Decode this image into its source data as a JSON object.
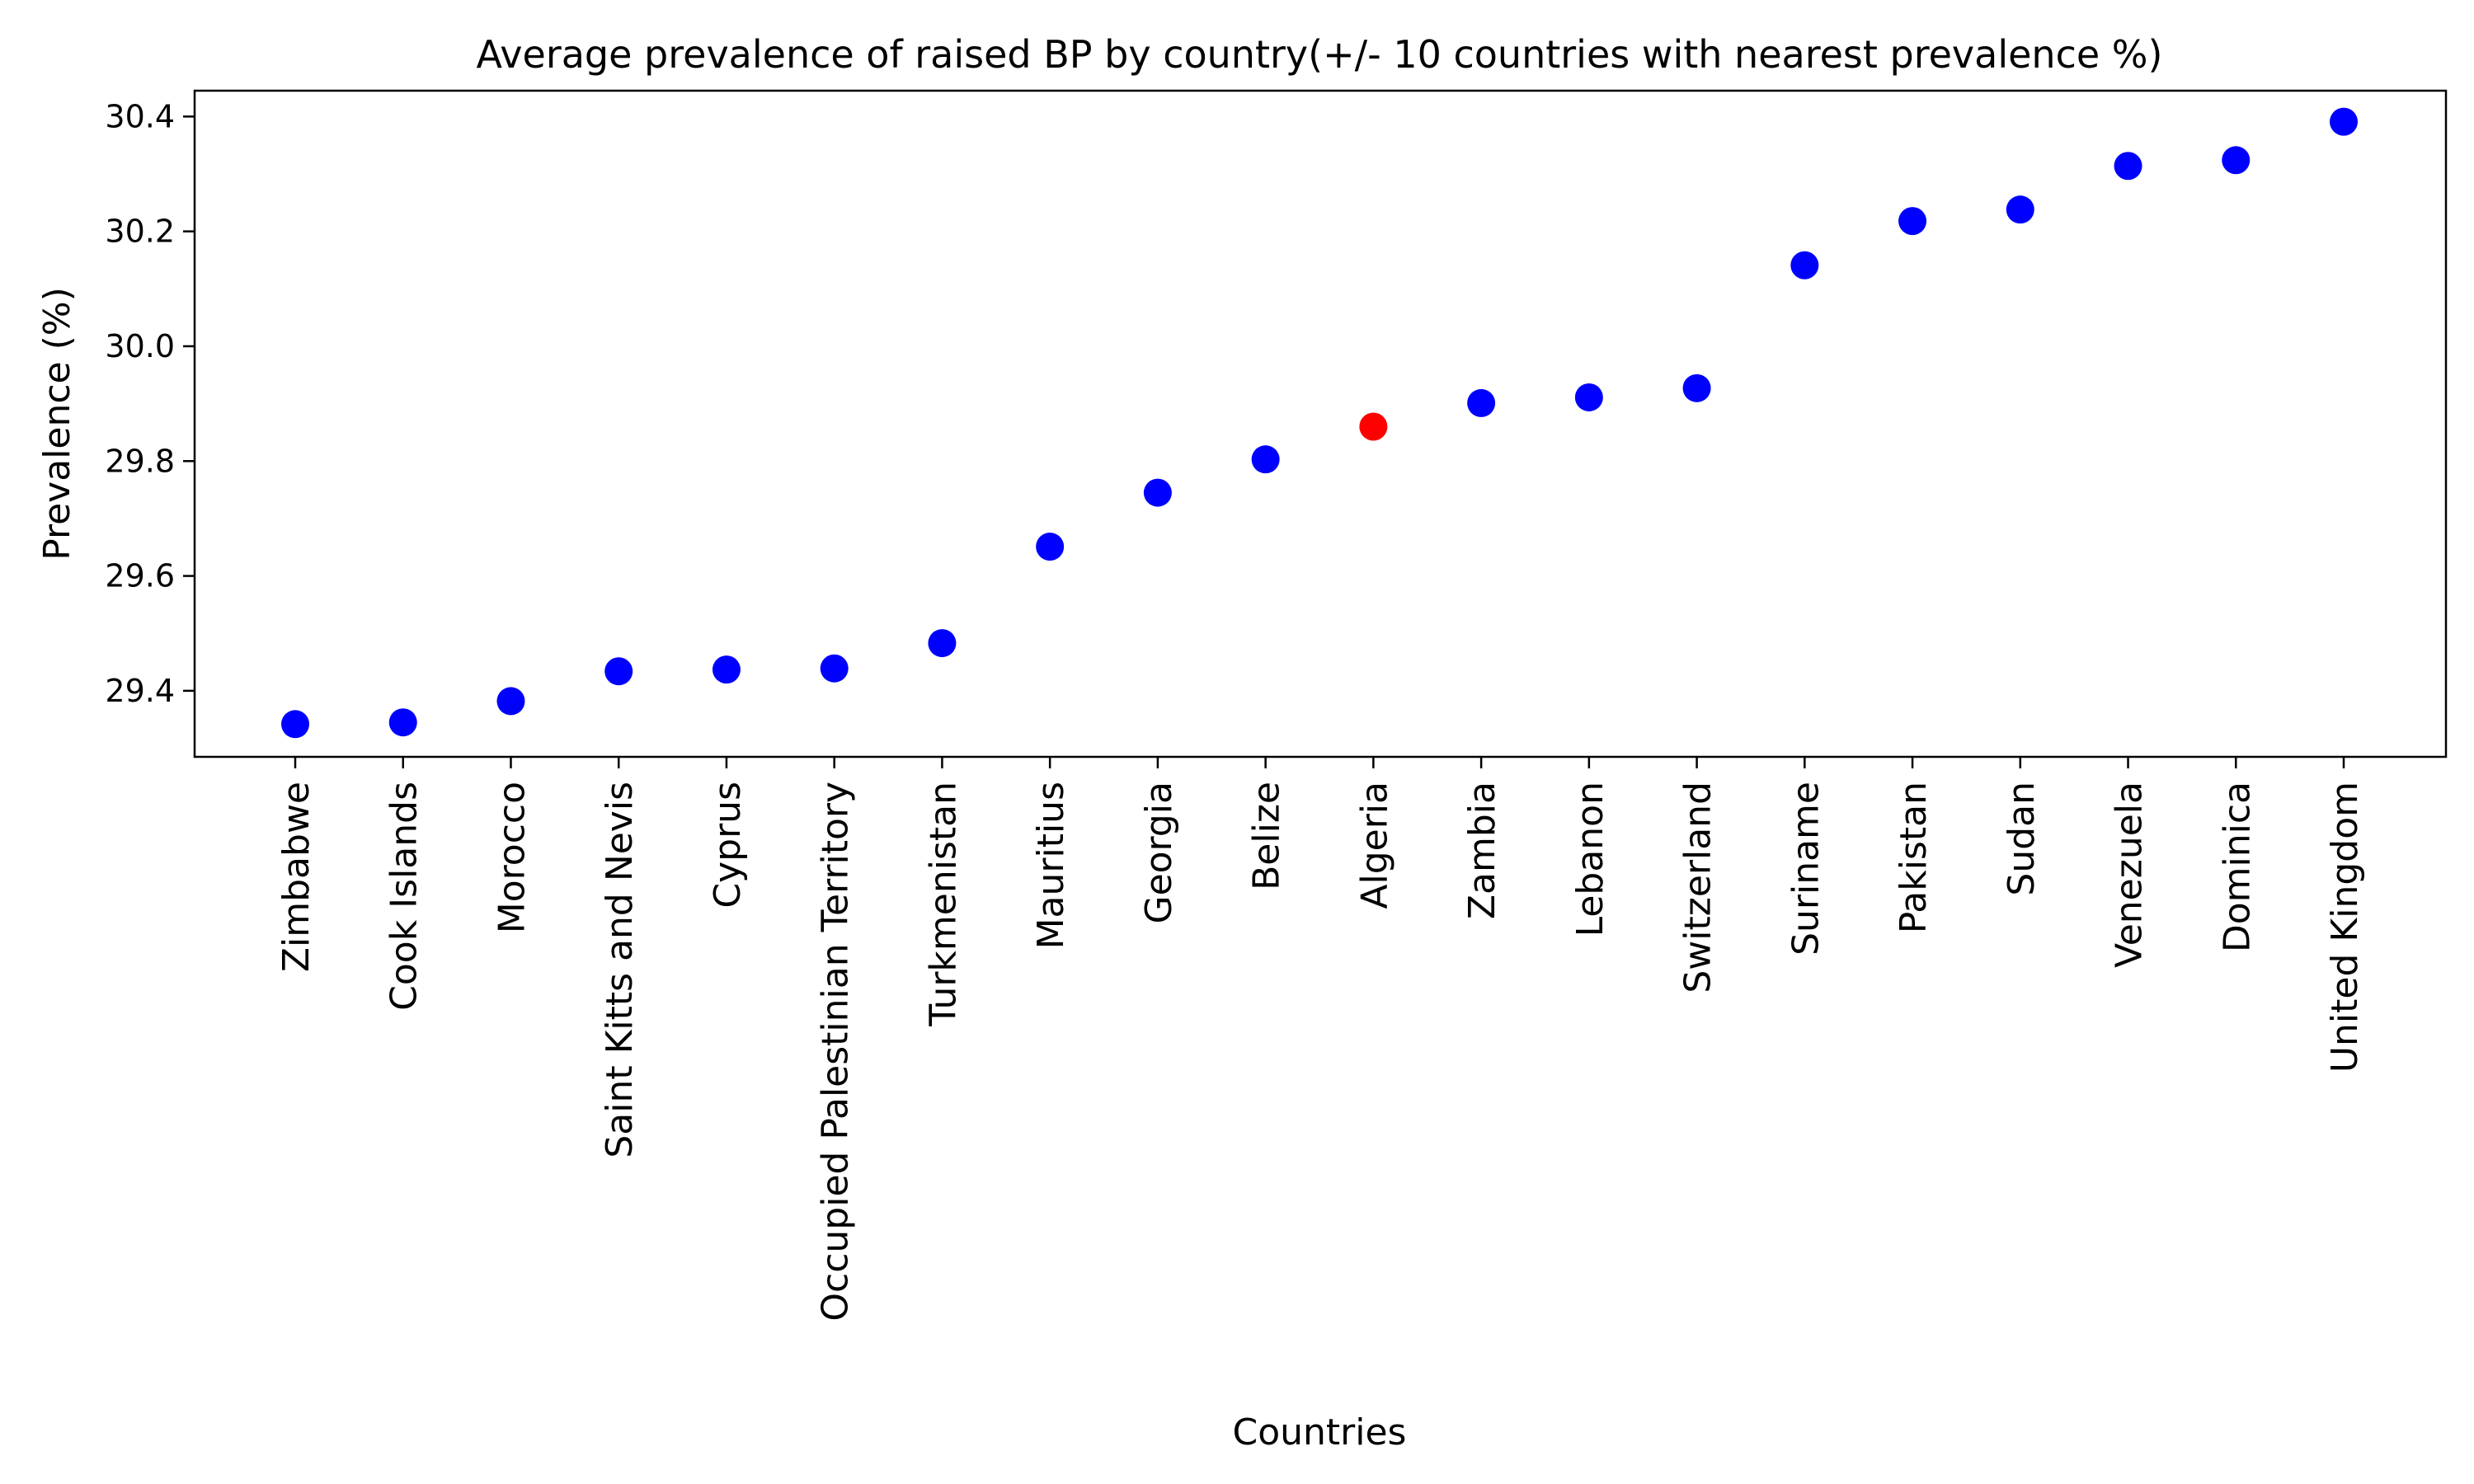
{
  "chart_data": {
    "type": "scatter",
    "title": "Average prevalence of raised BP by country(+/- 10 countries with nearest prevalence %)",
    "xlabel": "Countries",
    "ylabel": "Prevalence (%)",
    "ylim": [
      29.285,
      30.445
    ],
    "yticks": [
      "29.4",
      "29.6",
      "29.8",
      "30.0",
      "30.2",
      "30.4"
    ],
    "grid": false,
    "default_color": "#0000ff",
    "highlight_color": "#ff0000",
    "highlight": "Algeria",
    "categories": [
      "Zimbabwe",
      "Cook Islands",
      "Morocco",
      "Saint Kitts and Nevis",
      "Cyprus",
      "Occupied Palestinian Territory",
      "Turkmenistan",
      "Mauritius",
      "Georgia",
      "Belize",
      "Algeria",
      "Zambia",
      "Lebanon",
      "Switzerland",
      "Suriname",
      "Pakistan",
      "Sudan",
      "Venezuela",
      "Dominica",
      "United Kingdom"
    ],
    "values": [
      29.342,
      29.345,
      29.382,
      29.434,
      29.437,
      29.439,
      29.483,
      29.651,
      29.745,
      29.803,
      29.86,
      29.901,
      29.911,
      29.927,
      30.141,
      30.218,
      30.238,
      30.314,
      30.324,
      30.391
    ]
  }
}
